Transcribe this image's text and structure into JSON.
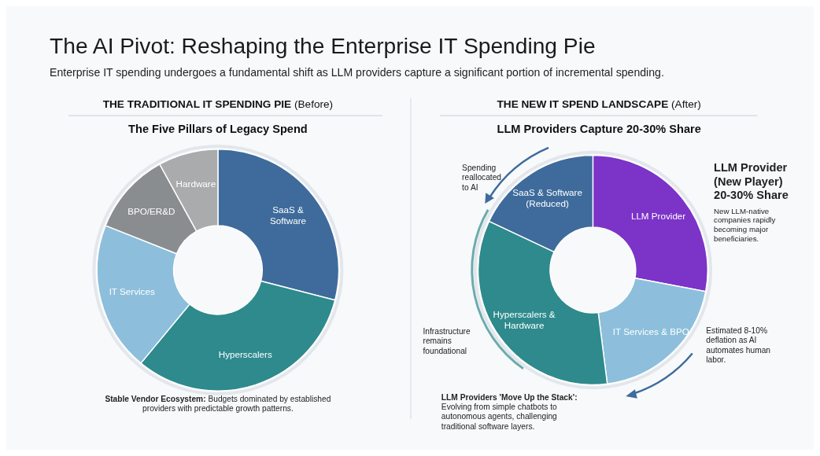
{
  "chart_data": [
    {
      "type": "other",
      "title": "The AI Pivot: Reshaping the Enterprise IT Spending Pie",
      "subtitle": "Enterprise IT spending undergoes a fundamental shift as LLM providers capture a significant portion of incremental spending."
    },
    {
      "type": "donut",
      "title": "THE TRADITIONAL IT SPENDING PIE (Before)",
      "subtitle": "The Five Pillars of Legacy Spend",
      "categories": [
        "SaaS & Software",
        "Hyperscalers",
        "IT Services",
        "BPO/ER&D",
        "Hardware"
      ],
      "values": [
        29,
        32,
        20,
        11,
        8
      ],
      "colors": [
        "#3e6b9b",
        "#2e8a8c",
        "#8dbfdc",
        "#8a8d90",
        "#a9abad"
      ],
      "annotations": [
        "Stable Vendor Ecosystem: Budgets dominated by established providers with predictable growth patterns."
      ]
    },
    {
      "type": "donut",
      "title": "THE NEW IT SPEND LANDSCAPE (After)",
      "subtitle": "LLM Providers Capture 20-30% Share",
      "categories": [
        "LLM Provider",
        "IT Services & BPO",
        "Hyperscalers & Hardware",
        "SaaS & Software (Reduced)"
      ],
      "values": [
        28,
        20,
        34,
        18
      ],
      "colors": [
        "#7b33c8",
        "#8dbfdc",
        "#2e8a8c",
        "#3e6b9b"
      ],
      "annotations": [
        "Spending reallocated to AI",
        "LLM Provider (New Player) 20-30% Share",
        "New LLM-native companies rapidly becoming major beneficiaries.",
        "Infrastructure remains foundational",
        "Estimated 8-10% deflation as AI automates human labor.",
        "LLM Providers 'Move Up the Stack': Evolving from simple chatbots to autonomous agents, challenging traditional software layers."
      ]
    }
  ]
}
